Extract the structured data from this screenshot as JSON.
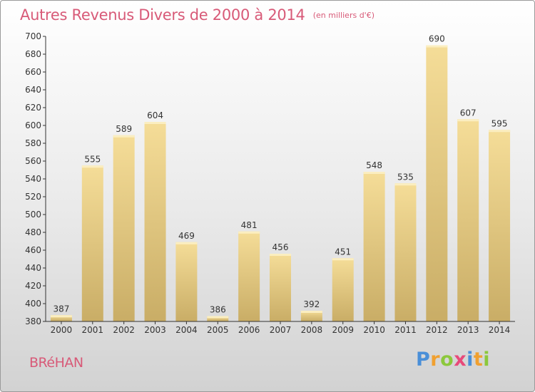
{
  "title": "Autres Revenus Divers de 2000 à 2014",
  "subtitle": "(en milliers d'€)",
  "commune": "BRéHAN",
  "logo": {
    "letters": [
      "P",
      "r",
      "o",
      "x",
      "i",
      "t",
      "i"
    ],
    "colors": [
      "#4a8fd8",
      "#f0a030",
      "#8cc83c",
      "#e84a7a",
      "#4a8fd8",
      "#f0a030",
      "#8cc83c"
    ]
  },
  "colors": {
    "bar_top": "#f5dd98",
    "bar_bottom": "#c9ad66",
    "title": "#d85a78"
  },
  "chart_data": {
    "type": "bar",
    "title": "Autres Revenus Divers de 2000 à 2014",
    "categories": [
      "2000",
      "2001",
      "2002",
      "2003",
      "2004",
      "2005",
      "2006",
      "2007",
      "2008",
      "2009",
      "2010",
      "2011",
      "2012",
      "2013",
      "2014"
    ],
    "values": [
      387,
      555,
      589,
      604,
      469,
      386,
      481,
      456,
      392,
      451,
      548,
      535,
      690,
      607,
      595
    ],
    "ylim": [
      380,
      700
    ],
    "yticks": [
      380,
      400,
      420,
      440,
      460,
      480,
      500,
      520,
      540,
      560,
      580,
      600,
      620,
      640,
      660,
      680,
      700
    ],
    "grid": false
  }
}
